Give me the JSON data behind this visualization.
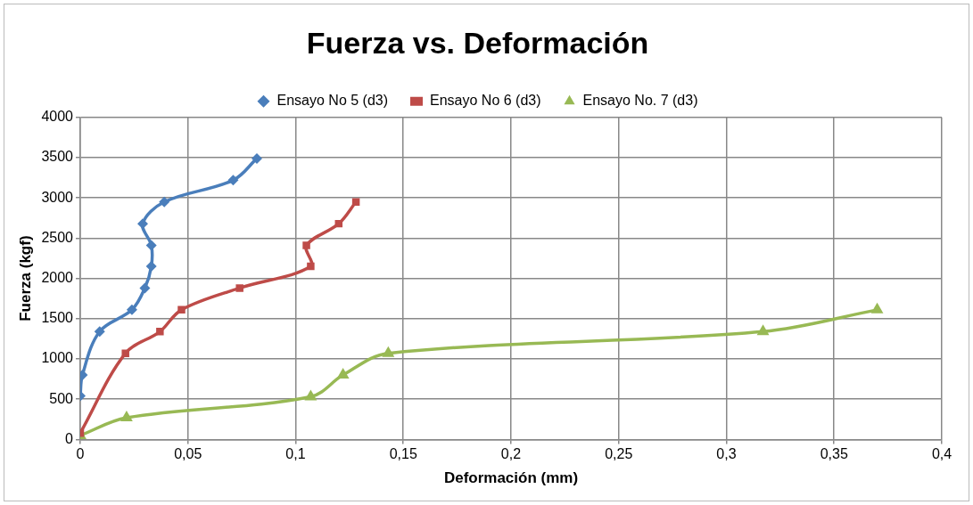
{
  "chart_data": {
    "type": "line",
    "title": "Fuerza vs. Deformación",
    "xlabel": "Deformación (mm)",
    "ylabel": "Fuerza (kgf)",
    "series": [
      {
        "name": "Ensayo No 5 (d3)",
        "color": "#4a7ebb",
        "marker": "diamond",
        "x": [
          0,
          0.001,
          0.009,
          0.024,
          0.03,
          0.033,
          0.033,
          0.029,
          0.039,
          0.071,
          0.082
        ],
        "values": [
          540,
          800,
          1340,
          1610,
          1880,
          2150,
          2410,
          2680,
          2950,
          3220,
          3490
        ]
      },
      {
        "name": "Ensayo No 6 (d3)",
        "color": "#be4b48",
        "marker": "square",
        "x": [
          0,
          0.021,
          0.037,
          0.047,
          0.074,
          0.107,
          0.105,
          0.12,
          0.128
        ],
        "values": [
          80,
          1070,
          1340,
          1610,
          1880,
          2150,
          2410,
          2680,
          2950
        ]
      },
      {
        "name": "Ensayo No. 7 (d3)",
        "color": "#98b954",
        "marker": "triangle",
        "x": [
          0,
          0.0215,
          0.107,
          0.122,
          0.143,
          0.317,
          0.37
        ],
        "values": [
          50,
          270,
          530,
          800,
          1070,
          1340,
          1610
        ]
      }
    ],
    "xlim": [
      0,
      0.4
    ],
    "xticks": [
      0,
      {
        "value": 0.05,
        "label": "0,05"
      },
      {
        "value": 0.1,
        "label": "0,1"
      },
      {
        "value": 0.15,
        "label": "0,15"
      },
      {
        "value": 0.2,
        "label": "0,2"
      },
      {
        "value": 0.25,
        "label": "0,25"
      },
      {
        "value": 0.3,
        "label": "0,3"
      },
      {
        "value": 0.35,
        "label": "0,35"
      },
      {
        "value": 0.4,
        "label": "0,4"
      }
    ],
    "ylim": [
      0,
      4000
    ],
    "yticks": [
      0,
      500,
      1000,
      1500,
      2000,
      2500,
      3000,
      3500,
      4000
    ],
    "grid": true,
    "legend": "top",
    "line_style": "solid"
  }
}
